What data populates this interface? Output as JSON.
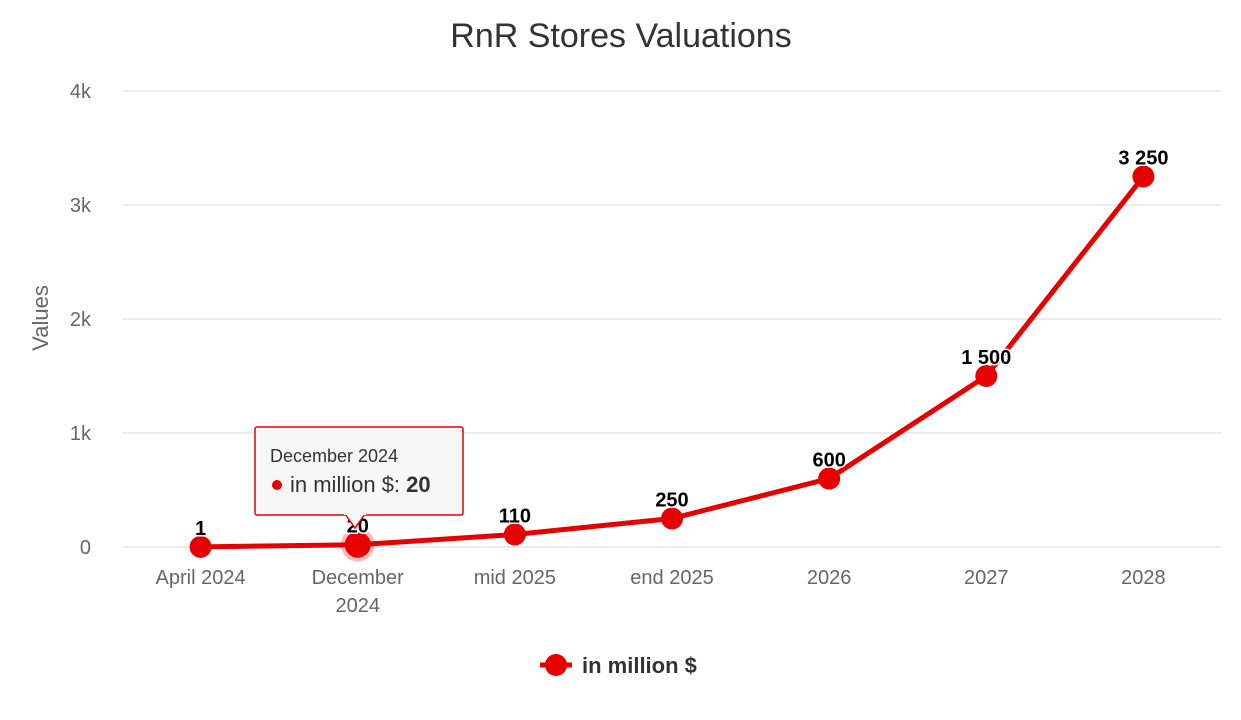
{
  "chart_data": {
    "type": "line",
    "title": "RnR Stores Valuations",
    "ylabel": "Values",
    "xlabel": "",
    "categories": [
      [
        "April 2024"
      ],
      [
        "December",
        "2024"
      ],
      [
        "mid 2025"
      ],
      [
        "end 2025"
      ],
      [
        "2026"
      ],
      [
        "2027"
      ],
      [
        "2028"
      ]
    ],
    "ylim": [
      0,
      4000
    ],
    "yticks": [
      0,
      1000,
      2000,
      3000,
      4000
    ],
    "ytick_labels": [
      "0",
      "1k",
      "2k",
      "3k",
      "4k"
    ],
    "grid": true,
    "legend_position": "bottom-center",
    "series": [
      {
        "name": "in million $",
        "color": "#e60000",
        "values": [
          1,
          20,
          110,
          250,
          600,
          1500,
          3250
        ],
        "data_labels": [
          "1",
          "20",
          "110",
          "250",
          "600",
          "1 500",
          "3 250"
        ]
      }
    ],
    "tooltip": {
      "category_index": 1,
      "header": "December 2024",
      "series_label": "in million $: ",
      "value_label": "20"
    }
  }
}
